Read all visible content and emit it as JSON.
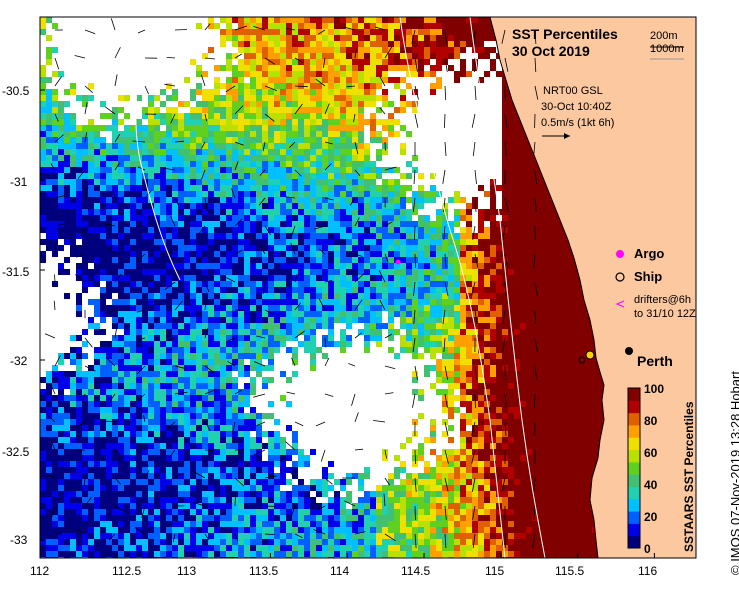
{
  "title": {
    "line1": "SST Percentiles",
    "line2": "30 Oct 2019"
  },
  "depth_contours": {
    "c200": "200m",
    "c1000": "1000m"
  },
  "velocity_info": {
    "line1": "NRT00 GSL",
    "line2": "30-Oct 10:40Z",
    "line3": "0.5m/s (1kt 6h)"
  },
  "legend": {
    "argo": "Argo",
    "ship": "Ship",
    "drifters_line1": "drifters@6h",
    "drifters_line2": "to 31/10 12Z",
    "city": "Perth"
  },
  "colorbar": {
    "title": "SSTAARS SST Percentiles",
    "ticks": [
      "100",
      "80",
      "60",
      "40",
      "20",
      "0"
    ],
    "colors": [
      "#00007f",
      "#0000e8",
      "#0060ff",
      "#00c0ff",
      "#20d0b0",
      "#40c070",
      "#60d020",
      "#b8e000",
      "#f0e000",
      "#ffa000",
      "#e06000",
      "#b00000",
      "#800000"
    ]
  },
  "axes": {
    "x_ticks": [
      "112",
      "112.5",
      "113",
      "113.5",
      "114",
      "114.5",
      "115",
      "115.5",
      "116"
    ],
    "y_ticks": [
      "-30.5",
      "-31",
      "-31.5",
      "-32",
      "-32.5",
      "-33"
    ]
  },
  "credit": "© IMOS 07-Nov-2019 13:28 Hobart",
  "colors": {
    "land": "#fcc8a0",
    "cloud": "#ffffff",
    "coast": "#000000",
    "argo": "#ff00ff"
  }
}
